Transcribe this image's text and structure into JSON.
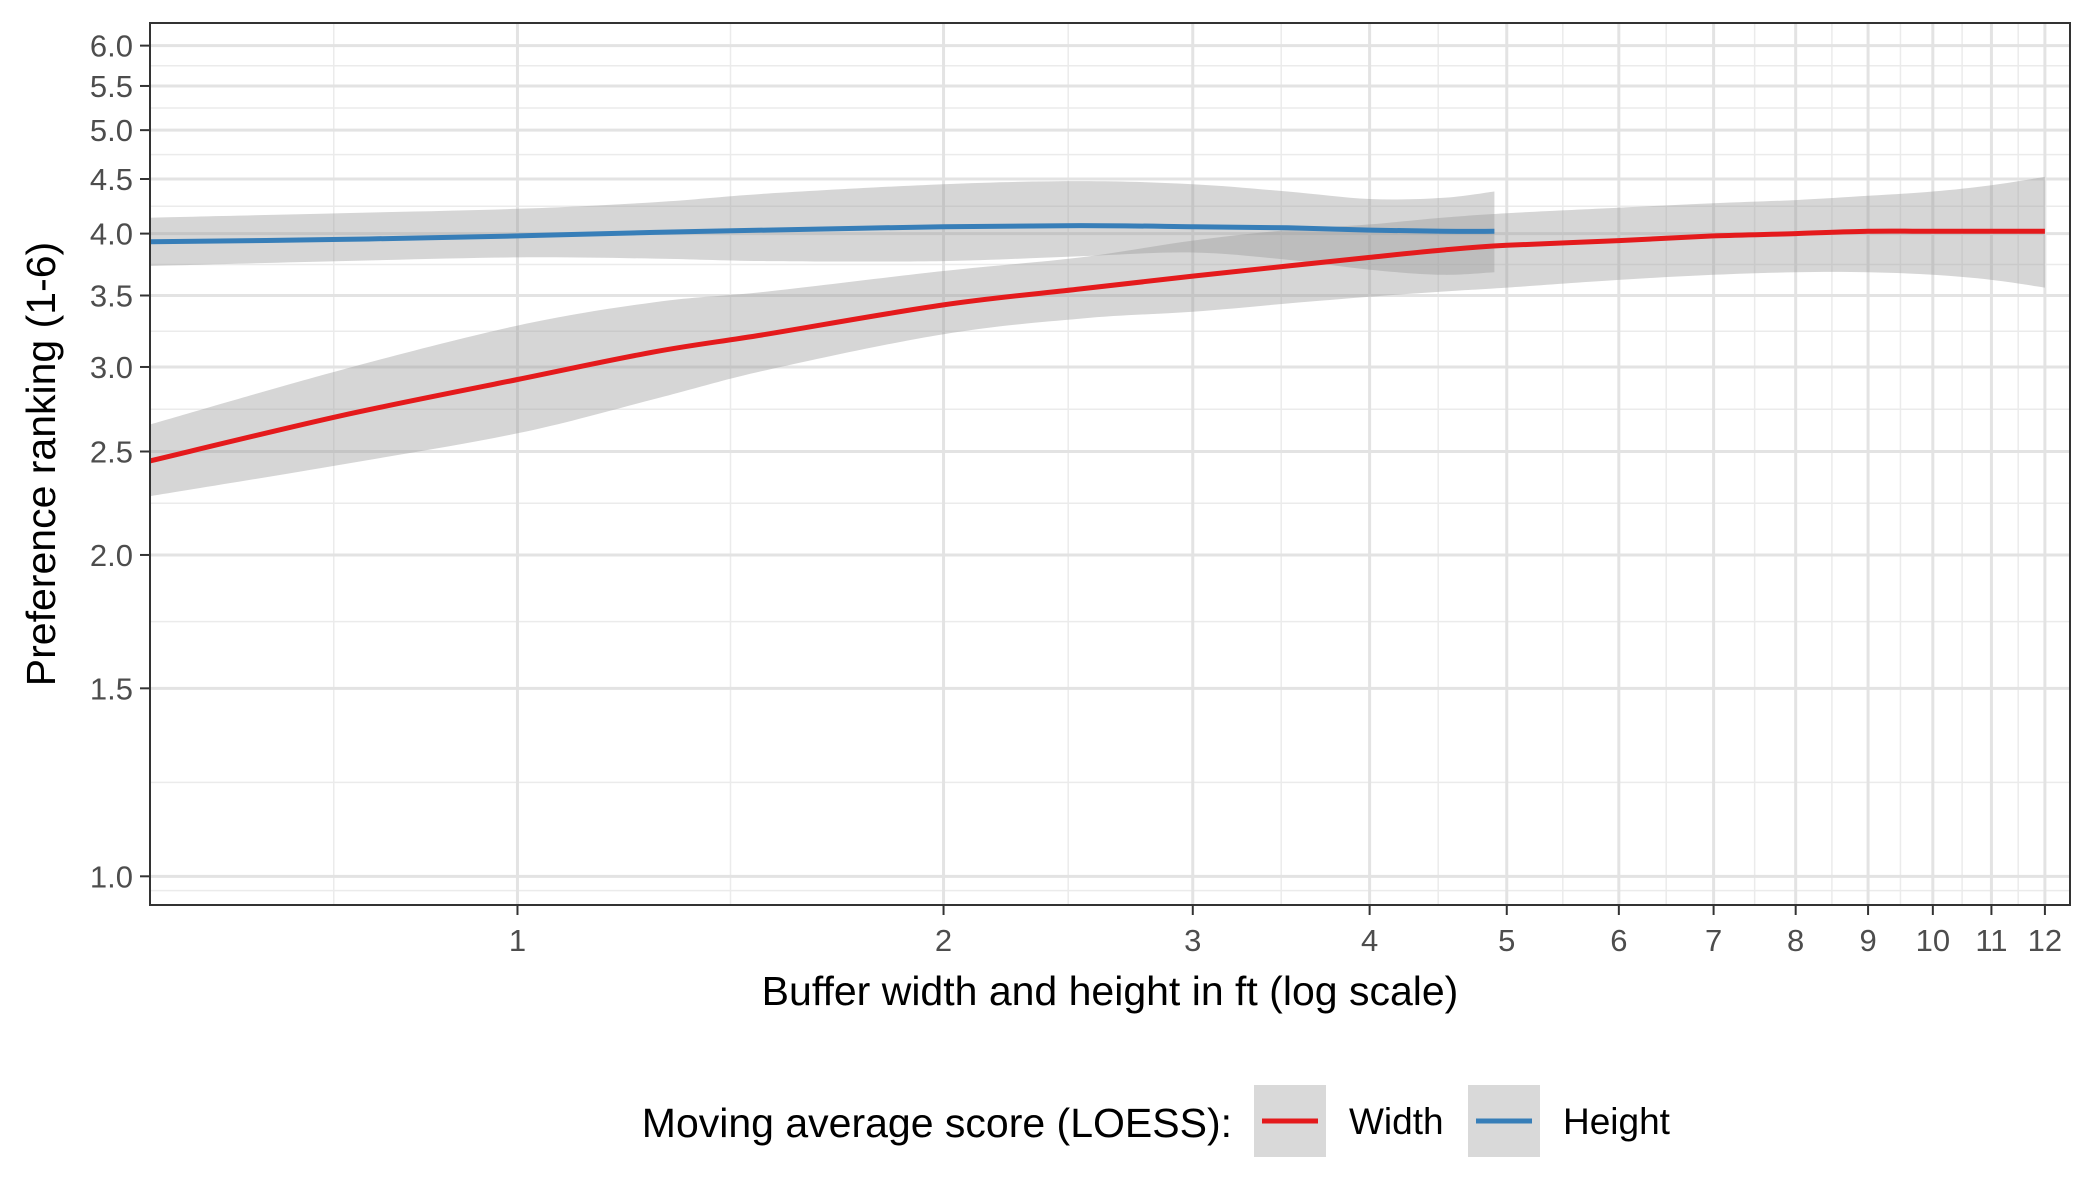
{
  "chart_data": {
    "type": "line",
    "xlabel": "Buffer width and height in ft (log scale)",
    "ylabel": "Preference ranking (1-6)",
    "x_scale": "log",
    "y_scale": "log",
    "xlim": [
      0.55,
      12.5
    ],
    "ylim": [
      0.94,
      6.3
    ],
    "x_ticks": [
      1,
      2,
      3,
      4,
      5,
      6,
      7,
      8,
      9,
      10,
      11,
      12
    ],
    "x_tick_labels": [
      "1",
      "2",
      "3",
      "4",
      "5",
      "6",
      "7",
      "8",
      "9",
      "10",
      "11",
      "12"
    ],
    "y_ticks": [
      1.0,
      1.5,
      2.0,
      2.5,
      3.0,
      3.5,
      4.0,
      4.5,
      5.0,
      5.5,
      6.0
    ],
    "y_tick_labels": [
      "1.0",
      "1.5",
      "2.0",
      "2.5",
      "3.0",
      "3.5",
      "4.0",
      "4.5",
      "5.0",
      "5.5",
      "6.0"
    ],
    "grid": true,
    "legend": {
      "title": "Moving average score (LOESS):",
      "position": "bottom",
      "entries": [
        "Width",
        "Height"
      ]
    },
    "series": [
      {
        "name": "Width",
        "color": "#e41a1c",
        "x": [
          0.55,
          0.75,
          1.0,
          1.25,
          1.5,
          2.0,
          2.5,
          3.0,
          3.5,
          4.0,
          4.5,
          5.0,
          6.0,
          7.0,
          8.0,
          9.0,
          10.0,
          11.0,
          12.0
        ],
        "y": [
          2.45,
          2.7,
          2.92,
          3.1,
          3.22,
          3.43,
          3.55,
          3.65,
          3.73,
          3.8,
          3.86,
          3.9,
          3.94,
          3.98,
          4.0,
          4.02,
          4.02,
          4.02,
          4.02
        ],
        "ci_low": [
          2.27,
          2.43,
          2.6,
          2.8,
          2.98,
          3.22,
          3.33,
          3.38,
          3.44,
          3.49,
          3.53,
          3.56,
          3.62,
          3.66,
          3.68,
          3.68,
          3.66,
          3.62,
          3.56
        ],
        "ci_high": [
          2.65,
          2.98,
          3.28,
          3.45,
          3.53,
          3.69,
          3.8,
          3.94,
          4.03,
          4.08,
          4.14,
          4.18,
          4.23,
          4.27,
          4.3,
          4.34,
          4.38,
          4.44,
          4.52
        ]
      },
      {
        "name": "Height",
        "color": "#377eb8",
        "x": [
          0.55,
          0.75,
          1.0,
          1.25,
          1.5,
          2.0,
          2.5,
          3.0,
          3.5,
          4.0,
          4.5,
          4.9
        ],
        "y": [
          3.93,
          3.95,
          3.98,
          4.01,
          4.03,
          4.06,
          4.07,
          4.06,
          4.05,
          4.03,
          4.02,
          4.02
        ],
        "ci_low": [
          3.73,
          3.77,
          3.8,
          3.79,
          3.77,
          3.77,
          3.81,
          3.84,
          3.78,
          3.7,
          3.66,
          3.68
        ],
        "ci_high": [
          4.14,
          4.18,
          4.22,
          4.28,
          4.36,
          4.45,
          4.48,
          4.45,
          4.38,
          4.31,
          4.32,
          4.38
        ]
      }
    ]
  }
}
